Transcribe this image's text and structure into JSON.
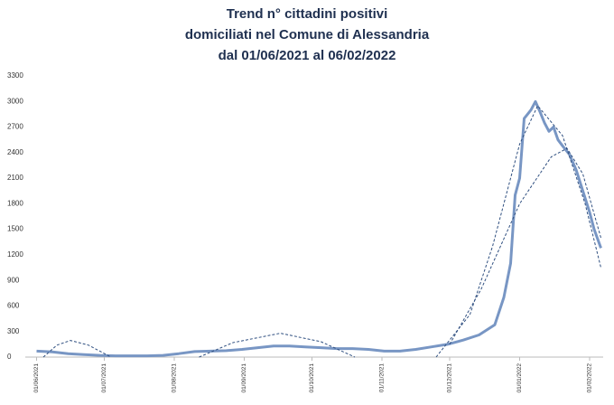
{
  "chart_data": {
    "type": "line",
    "title": [
      "Trend n° cittadini positivi",
      "domiciliati nel Comune di Alessandria",
      "dal 01/06/2021 al 06/02/2022"
    ],
    "xlim": [
      "27/05/2021",
      "07/02/2022"
    ],
    "xticks": [
      "01/06/2021",
      "01/07/2021",
      "01/08/2021",
      "01/09/2021",
      "01/10/2021",
      "01/11/2021",
      "01/12/2021",
      "01/01/2022",
      "01/02/2022"
    ],
    "ylim": [
      0,
      3300
    ],
    "yticks": [
      0,
      300,
      600,
      900,
      1200,
      1500,
      1800,
      2100,
      2400,
      2700,
      3000,
      3300
    ],
    "series": [
      {
        "color": "#7896c4",
        "width": 3,
        "dashed": false,
        "x": [
          "01/06/2021",
          "08/06/2021",
          "15/06/2021",
          "22/06/2021",
          "29/06/2021",
          "06/07/2021",
          "13/07/2021",
          "20/07/2021",
          "27/07/2021",
          "03/08/2021",
          "10/08/2021",
          "17/08/2021",
          "24/08/2021",
          "31/08/2021",
          "07/09/2021",
          "14/09/2021",
          "21/09/2021",
          "28/09/2021",
          "05/10/2021",
          "12/10/2021",
          "19/10/2021",
          "26/10/2021",
          "02/11/2021",
          "09/11/2021",
          "16/11/2021",
          "23/11/2021",
          "30/11/2021",
          "07/12/2021",
          "14/12/2021",
          "21/12/2021",
          "25/12/2021",
          "28/12/2021",
          "30/12/2021",
          "01/01/2022",
          "03/01/2022",
          "06/01/2022",
          "08/01/2022",
          "10/01/2022",
          "12/01/2022",
          "14/01/2022",
          "16/01/2022",
          "18/01/2022",
          "20/01/2022",
          "23/01/2022",
          "26/01/2022",
          "29/01/2022",
          "01/02/2022",
          "03/02/2022",
          "06/02/2022"
        ],
        "values": [
          70,
          60,
          40,
          30,
          20,
          15,
          15,
          15,
          20,
          40,
          65,
          70,
          75,
          90,
          110,
          130,
          130,
          120,
          110,
          100,
          100,
          90,
          70,
          70,
          90,
          120,
          150,
          200,
          260,
          380,
          700,
          1100,
          1900,
          2100,
          2800,
          2900,
          3000,
          2880,
          2750,
          2650,
          2700,
          2550,
          2480,
          2380,
          2200,
          1950,
          1700,
          1500,
          1280
        ]
      },
      {
        "color": "#2f4f80",
        "width": 1,
        "dashed": true,
        "x": [
          "04/06/2021",
          "10/06/2021",
          "16/06/2021",
          "24/06/2021",
          "04/07/2021"
        ],
        "values": [
          0,
          140,
          195,
          140,
          0
        ]
      },
      {
        "color": "#2f4f80",
        "width": 1,
        "dashed": true,
        "x": [
          "12/08/2021",
          "27/08/2021",
          "17/09/2021",
          "05/10/2021",
          "20/10/2021"
        ],
        "values": [
          0,
          170,
          280,
          180,
          0
        ]
      },
      {
        "color": "#2f4f80",
        "width": 1,
        "dashed": true,
        "x": [
          "25/11/2021",
          "10/12/2021",
          "20/12/2021",
          "01/01/2022",
          "09/01/2022",
          "20/01/2022",
          "30/01/2022",
          "06/02/2022"
        ],
        "values": [
          0,
          500,
          1300,
          2500,
          2950,
          2600,
          1800,
          1050
        ]
      },
      {
        "color": "#2f4f80",
        "width": 1,
        "dashed": true,
        "x": [
          "01/12/2021",
          "15/12/2021",
          "01/01/2022",
          "15/01/2022",
          "22/01/2022",
          "29/01/2022",
          "06/02/2022"
        ],
        "values": [
          150,
          800,
          1800,
          2350,
          2450,
          2150,
          1400
        ]
      }
    ]
  }
}
